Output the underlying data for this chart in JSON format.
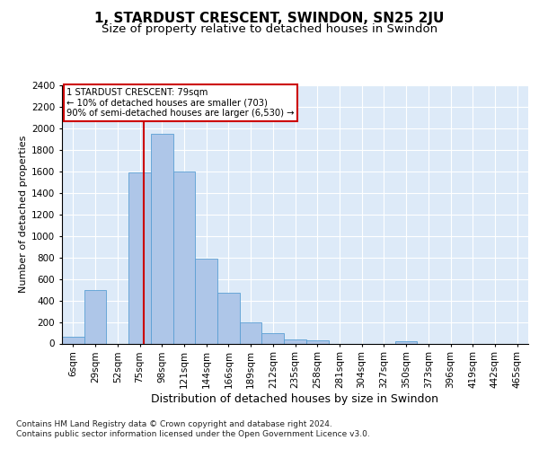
{
  "title": "1, STARDUST CRESCENT, SWINDON, SN25 2JU",
  "subtitle": "Size of property relative to detached houses in Swindon",
  "xlabel": "Distribution of detached houses by size in Swindon",
  "ylabel": "Number of detached properties",
  "categories": [
    "6sqm",
    "29sqm",
    "52sqm",
    "75sqm",
    "98sqm",
    "121sqm",
    "144sqm",
    "166sqm",
    "189sqm",
    "212sqm",
    "235sqm",
    "258sqm",
    "281sqm",
    "304sqm",
    "327sqm",
    "350sqm",
    "373sqm",
    "396sqm",
    "419sqm",
    "442sqm",
    "465sqm"
  ],
  "values": [
    60,
    500,
    0,
    1590,
    1950,
    1600,
    790,
    470,
    200,
    95,
    35,
    30,
    0,
    0,
    0,
    25,
    0,
    0,
    0,
    0,
    0
  ],
  "bar_color": "#aec6e8",
  "bar_edge_color": "#5a9fd4",
  "background_color": "#ddeaf8",
  "grid_color": "#ffffff",
  "vline_color": "#cc0000",
  "annotation_text": "1 STARDUST CRESCENT: 79sqm\n← 10% of detached houses are smaller (703)\n90% of semi-detached houses are larger (6,530) →",
  "annotation_box_color": "#ffffff",
  "annotation_box_edge": "#cc0000",
  "footer_text": "Contains HM Land Registry data © Crown copyright and database right 2024.\nContains public sector information licensed under the Open Government Licence v3.0.",
  "ylim": [
    0,
    2400
  ],
  "yticks": [
    0,
    200,
    400,
    600,
    800,
    1000,
    1200,
    1400,
    1600,
    1800,
    2000,
    2200,
    2400
  ],
  "title_fontsize": 11,
  "subtitle_fontsize": 9.5,
  "xlabel_fontsize": 9,
  "ylabel_fontsize": 8,
  "tick_fontsize": 7.5,
  "footer_fontsize": 6.5,
  "vline_sqm": 79
}
